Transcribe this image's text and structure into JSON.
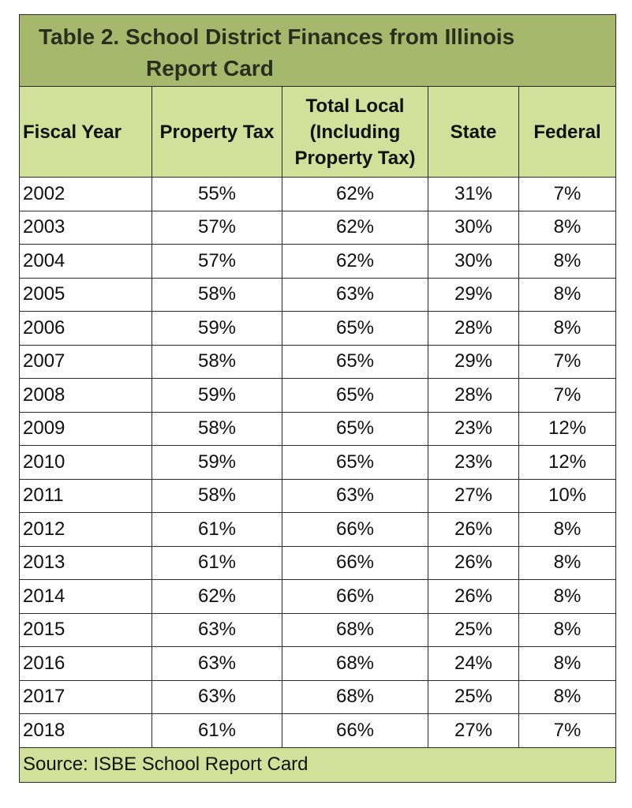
{
  "title": {
    "line1": "Table 2.  School District Finances from Illinois",
    "line2": "Report Card"
  },
  "headers": {
    "fiscal_year": "Fiscal Year",
    "property_tax": "Property Tax",
    "total_local": [
      "Total  Local",
      "(Including",
      "Property Tax)"
    ],
    "state": "State",
    "federal": "Federal"
  },
  "rows": [
    [
      "2002",
      "55%",
      "62%",
      "31%",
      "7%"
    ],
    [
      "2003",
      "57%",
      "62%",
      "30%",
      "8%"
    ],
    [
      "2004",
      "57%",
      "62%",
      "30%",
      "8%"
    ],
    [
      "2005",
      "58%",
      "63%",
      "29%",
      "8%"
    ],
    [
      "2006",
      "59%",
      "65%",
      "28%",
      "8%"
    ],
    [
      "2007",
      "58%",
      "65%",
      "29%",
      "7%"
    ],
    [
      "2008",
      "59%",
      "65%",
      "28%",
      "7%"
    ],
    [
      "2009",
      "58%",
      "65%",
      "23%",
      "12%"
    ],
    [
      "2010",
      "59%",
      "65%",
      "23%",
      "12%"
    ],
    [
      "2011",
      "58%",
      "63%",
      "27%",
      "10%"
    ],
    [
      "2012",
      "61%",
      "66%",
      "26%",
      "8%"
    ],
    [
      "2013",
      "61%",
      "66%",
      "26%",
      "8%"
    ],
    [
      "2014",
      "62%",
      "66%",
      "26%",
      "8%"
    ],
    [
      "2015",
      "63%",
      "68%",
      "25%",
      "8%"
    ],
    [
      "2016",
      "63%",
      "68%",
      "24%",
      "8%"
    ],
    [
      "2017",
      "63%",
      "68%",
      "25%",
      "8%"
    ],
    [
      "2018",
      "61%",
      "66%",
      "27%",
      "7%"
    ]
  ],
  "source": "Source: ISBE School Report Card",
  "colors": {
    "title_bg": "#a6b86c",
    "header_bg": "#d3e099",
    "border": "#2b2b2b"
  }
}
